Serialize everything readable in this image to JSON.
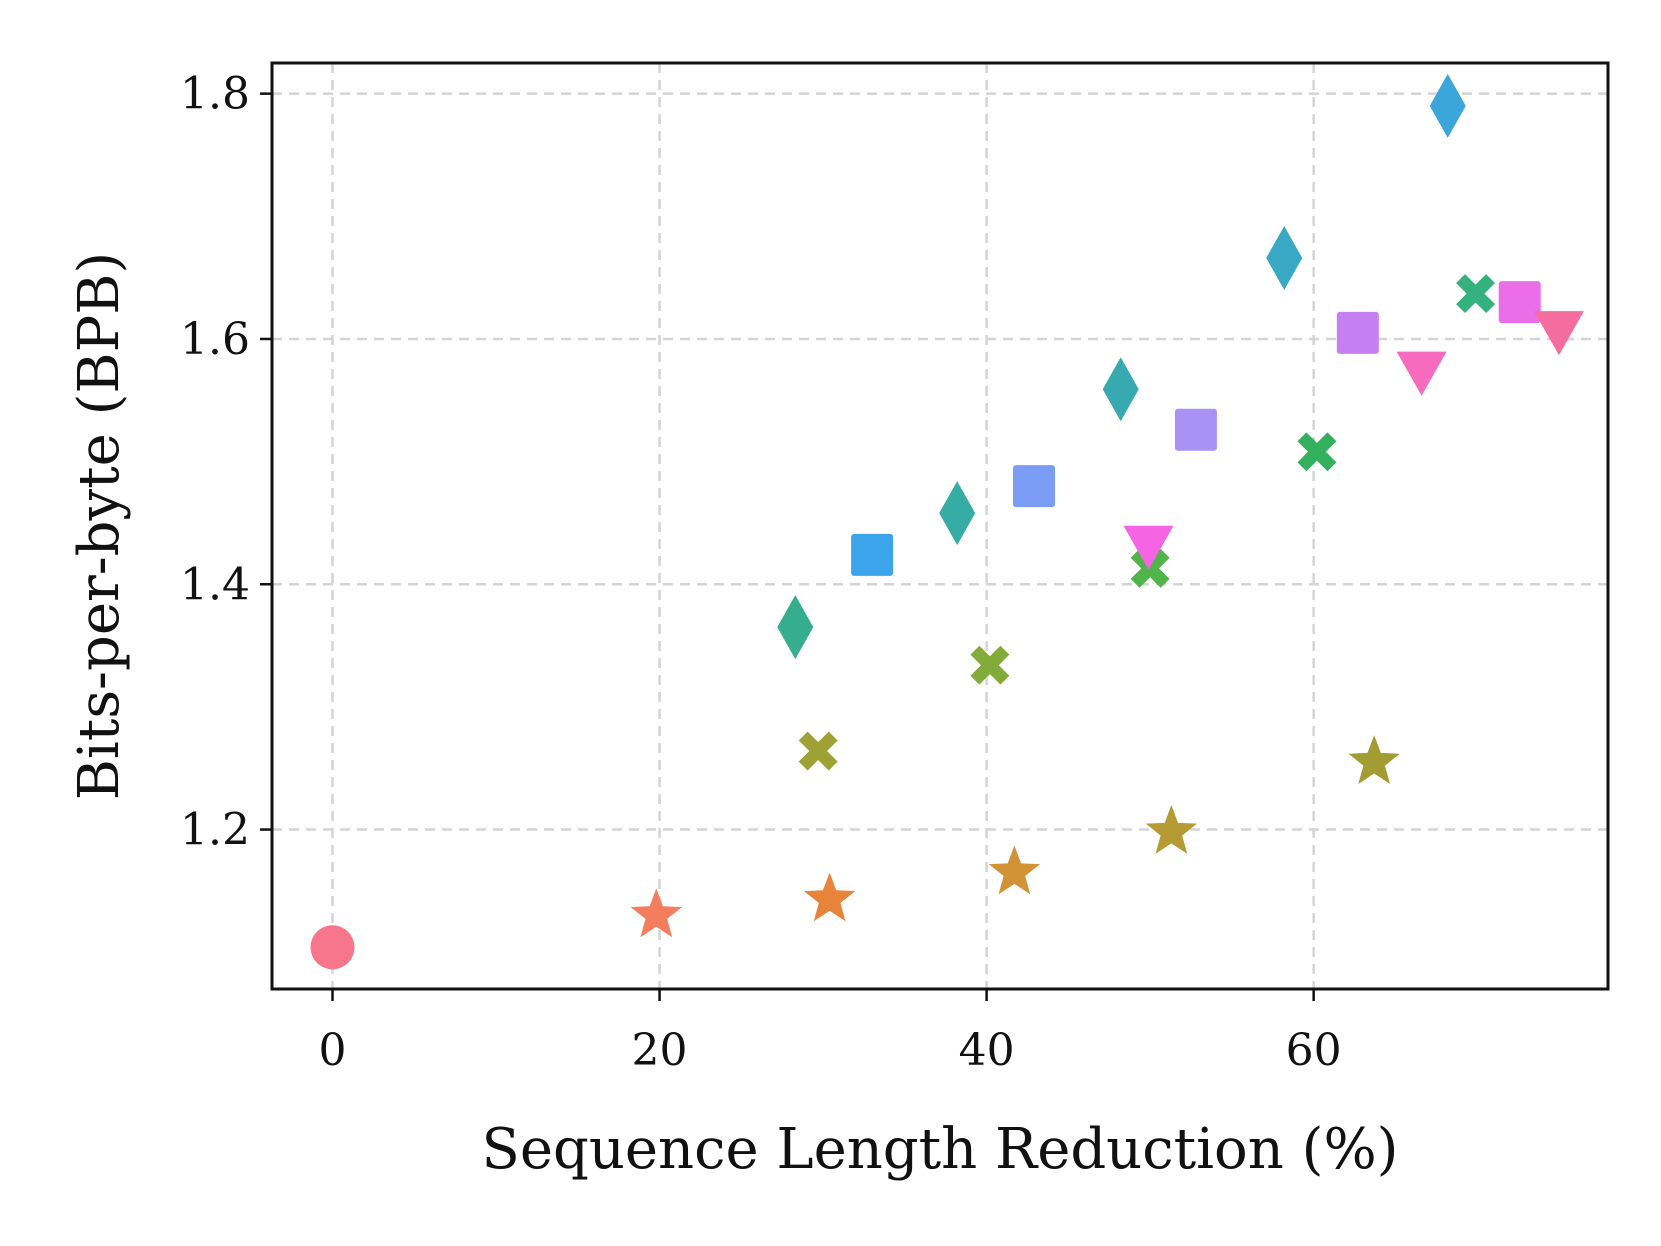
{
  "chart_data": {
    "type": "scatter",
    "title": "",
    "xlabel": "Sequence Length Reduction (%)",
    "ylabel": "Bits-per-byte (BPB)",
    "xlim": [
      -3.7,
      78
    ],
    "ylim": [
      1.07,
      1.825
    ],
    "xticks": [
      0,
      20,
      40,
      60
    ],
    "xtick_labels": [
      "0",
      "20",
      "40",
      "60"
    ],
    "yticks": [
      1.2,
      1.4,
      1.6,
      1.8
    ],
    "ytick_labels": [
      "1.2",
      "1.4",
      "1.6",
      "1.8"
    ],
    "grid": true,
    "legend": "none",
    "points": [
      {
        "x": 0,
        "y": 1.104,
        "marker": "circle",
        "color": "#f7768b"
      },
      {
        "x": 19.8,
        "y": 1.13,
        "marker": "star",
        "color": "#f47d5e"
      },
      {
        "x": 30.4,
        "y": 1.143,
        "marker": "star",
        "color": "#e8833a"
      },
      {
        "x": 41.7,
        "y": 1.165,
        "marker": "star",
        "color": "#d19336"
      },
      {
        "x": 51.3,
        "y": 1.198,
        "marker": "star",
        "color": "#b69b34"
      },
      {
        "x": 63.7,
        "y": 1.255,
        "marker": "star",
        "color": "#a29c32"
      },
      {
        "x": 29.7,
        "y": 1.264,
        "marker": "x",
        "color": "#9ea133"
      },
      {
        "x": 40.2,
        "y": 1.334,
        "marker": "x",
        "color": "#82ab3a"
      },
      {
        "x": 50.0,
        "y": 1.413,
        "marker": "x",
        "color": "#4fb449"
      },
      {
        "x": 60.2,
        "y": 1.508,
        "marker": "x",
        "color": "#33b05e"
      },
      {
        "x": 69.9,
        "y": 1.637,
        "marker": "x",
        "color": "#35b17e"
      },
      {
        "x": 28.3,
        "y": 1.365,
        "marker": "diamond",
        "color": "#35ad8e"
      },
      {
        "x": 38.2,
        "y": 1.458,
        "marker": "diamond",
        "color": "#36ada4"
      },
      {
        "x": 48.2,
        "y": 1.559,
        "marker": "diamond",
        "color": "#36aab0"
      },
      {
        "x": 58.2,
        "y": 1.666,
        "marker": "diamond",
        "color": "#38a8c4"
      },
      {
        "x": 68.2,
        "y": 1.79,
        "marker": "diamond",
        "color": "#3aa6da"
      },
      {
        "x": 33.0,
        "y": 1.424,
        "marker": "square",
        "color": "#3ca4eb"
      },
      {
        "x": 42.9,
        "y": 1.48,
        "marker": "square",
        "color": "#7b9cf4"
      },
      {
        "x": 52.8,
        "y": 1.526,
        "marker": "square",
        "color": "#a992f4"
      },
      {
        "x": 62.7,
        "y": 1.605,
        "marker": "square",
        "color": "#c67ff1"
      },
      {
        "x": 72.6,
        "y": 1.63,
        "marker": "square",
        "color": "#ea6ee8"
      },
      {
        "x": 49.9,
        "y": 1.433,
        "marker": "triangle_down",
        "color": "#f564e3"
      },
      {
        "x": 66.6,
        "y": 1.575,
        "marker": "triangle_down",
        "color": "#f66bbd"
      },
      {
        "x": 75.0,
        "y": 1.608,
        "marker": "triangle_down",
        "color": "#f56c9e"
      }
    ]
  }
}
